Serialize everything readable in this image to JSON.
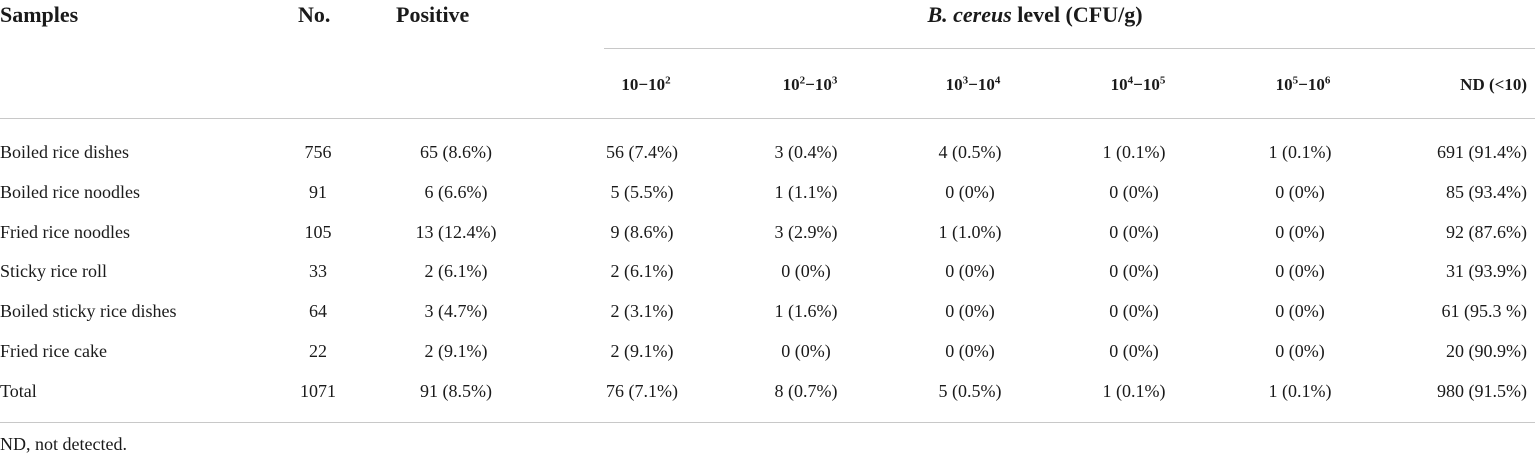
{
  "headers": {
    "samples": "Samples",
    "no": "No.",
    "positive": "Positive",
    "level_italic": "B. cereus",
    "level_rest": " level (CFU/g)"
  },
  "levels": [
    {
      "a": "10",
      "b": "",
      "sep": "−",
      "c": "10",
      "d": "2"
    },
    {
      "a": "10",
      "b": "2",
      "sep": "−",
      "c": "10",
      "d": "3"
    },
    {
      "a": "10",
      "b": "3",
      "sep": "−",
      "c": "10",
      "d": "4"
    },
    {
      "a": "10",
      "b": "4",
      "sep": "−",
      "c": "10",
      "d": "5"
    },
    {
      "a": "10",
      "b": "5",
      "sep": "−",
      "c": "10",
      "d": "6"
    },
    {
      "a": "ND (<10)",
      "b": "",
      "sep": "",
      "c": "",
      "d": ""
    }
  ],
  "rows": [
    {
      "name": "Boiled rice dishes",
      "cells": [
        "756",
        "65 (8.6%)",
        "56 (7.4%)",
        "3 (0.4%)",
        "4 (0.5%)",
        "1 (0.1%)",
        "1 (0.1%)",
        "691 (91.4%)"
      ]
    },
    {
      "name": "Boiled rice noodles",
      "cells": [
        "91",
        "6 (6.6%)",
        "5 (5.5%)",
        "1 (1.1%)",
        "0 (0%)",
        "0 (0%)",
        "0 (0%)",
        "85 (93.4%)"
      ]
    },
    {
      "name": "Fried rice noodles",
      "cells": [
        "105",
        "13 (12.4%)",
        "9 (8.6%)",
        "3 (2.9%)",
        "1 (1.0%)",
        "0 (0%)",
        "0 (0%)",
        "92 (87.6%)"
      ]
    },
    {
      "name": "Sticky rice roll",
      "cells": [
        "33",
        "2 (6.1%)",
        "2 (6.1%)",
        "0 (0%)",
        "0 (0%)",
        "0 (0%)",
        "0 (0%)",
        "31 (93.9%)"
      ]
    },
    {
      "name": "Boiled sticky rice dishes",
      "cells": [
        "64",
        "3 (4.7%)",
        "2 (3.1%)",
        "1 (1.6%)",
        "0 (0%)",
        "0 (0%)",
        "0 (0%)",
        "61 (95.3 %)"
      ]
    },
    {
      "name": "Fried rice cake",
      "cells": [
        "22",
        "2 (9.1%)",
        "2 (9.1%)",
        "0 (0%)",
        "0 (0%)",
        "0 (0%)",
        "0 (0%)",
        "20 (90.9%)"
      ]
    },
    {
      "name": "Total",
      "cells": [
        "1071",
        "91 (8.5%)",
        "76 (7.1%)",
        "8 (0.7%)",
        "5 (0.5%)",
        "1 (0.1%)",
        "1 (0.1%)",
        "980 (91.5%)"
      ]
    }
  ],
  "footnote": "ND, not detected."
}
